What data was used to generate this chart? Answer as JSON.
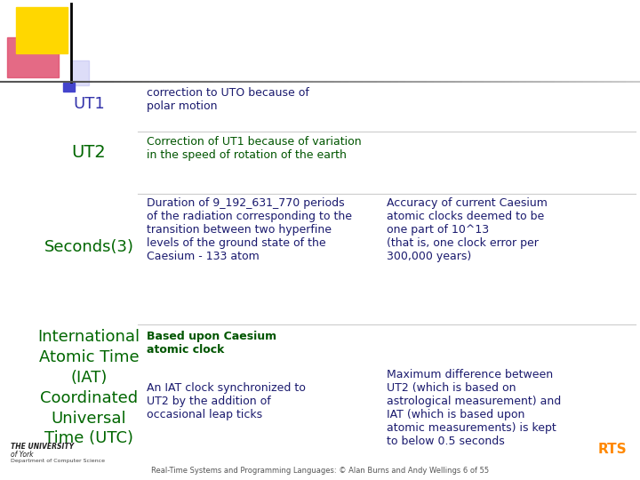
{
  "bg_color": "#ffffff",
  "footer_text": "Real-Time Systems and Programming Languages: © Alan Burns and Andy Wellings 6 of 55",
  "rows": [
    {
      "label": "UT1",
      "label_color": "#3333aa",
      "col1": "correction to UTO because of\npolar motion",
      "col1_color": "#1a1a6e"
    },
    {
      "label": "UT2",
      "label_color": "#006600",
      "col1": "Correction of UT1 because of variation\nin the speed of rotation of the earth",
      "col1_color": "#005500"
    },
    {
      "label": "Seconds(3)",
      "label_color": "#006600",
      "col1": "Duration of 9_192_631_770 periods\nof the radiation corresponding to the\ntransition between two hyperfine\nlevels of the ground state of the\nCaesium - 133 atom",
      "col1_color": "#1a1a6e",
      "col2": "Accuracy of current Caesium\natomic clocks deemed to be\none part of 10^13\n(that is, one clock error per\n300,000 years)",
      "col2_color": "#1a1a6e"
    },
    {
      "label": "International\nAtomic Time\n(IAT)\nCoordinated\nUniversal\nTime (UTC)",
      "label_color": "#006600",
      "col1_top": "Based upon Caesium\natomic clock",
      "col1_top_color": "#005500",
      "col1_bottom": "An IAT clock synchronized to\nUT2 by the addition of\noccasional leap ticks",
      "col1_bottom_color": "#1a1a6e",
      "col2": "Maximum difference between\nUT2 (which is based on\nastrological measurement) and\nIAT (which is based upon\natomic measurements) is kept\nto below 0.5 seconds",
      "col2_color": "#1a1a6e"
    }
  ]
}
